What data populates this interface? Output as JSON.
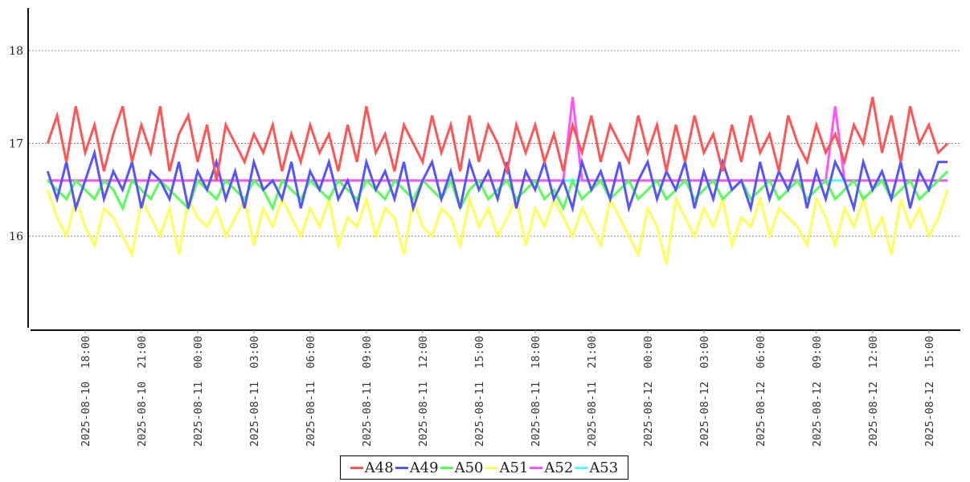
{
  "chart_data": {
    "type": "line",
    "title": "",
    "xlabel": "",
    "ylabel": "",
    "ylim": [
      15.0,
      18.45
    ],
    "yticks": [
      16,
      17,
      18
    ],
    "grid": "horizontal dotted",
    "legend_position": "bottom-center",
    "x_start": "2025-08-10 16:00",
    "x_interval_minutes": 30,
    "x_range_hours": [
      -0.75,
      49.0
    ],
    "xtick_labels": [
      "2025-08-10  18:00",
      "2025-08-10  21:00",
      "2025-08-11  00:00",
      "2025-08-11  03:00",
      "2025-08-11  06:00",
      "2025-08-11  09:00",
      "2025-08-11  12:00",
      "2025-08-11  15:00",
      "2025-08-11  18:00",
      "2025-08-11  21:00",
      "2025-08-12  00:00",
      "2025-08-12  03:00",
      "2025-08-12  06:00",
      "2025-08-12  09:00",
      "2025-08-12  12:00",
      "2025-08-12  15:00"
    ],
    "xtick_hours": [
      2,
      5,
      8,
      11,
      14,
      17,
      20,
      23,
      26,
      29,
      32,
      35,
      38,
      41,
      44,
      47
    ],
    "series": [
      {
        "name": "A48",
        "color": "#ff5555",
        "values": [
          17.0,
          17.3,
          16.8,
          17.4,
          16.9,
          17.2,
          16.7,
          17.1,
          17.4,
          16.8,
          17.2,
          16.9,
          17.4,
          16.7,
          17.1,
          17.3,
          16.8,
          17.2,
          16.6,
          17.2,
          17.0,
          16.8,
          17.1,
          16.9,
          17.2,
          16.7,
          17.1,
          16.8,
          17.2,
          16.9,
          17.1,
          16.7,
          17.2,
          16.8,
          17.4,
          16.9,
          17.1,
          16.7,
          17.2,
          17.0,
          16.8,
          17.3,
          16.9,
          17.2,
          16.7,
          17.3,
          16.8,
          17.2,
          17.0,
          16.7,
          17.2,
          16.9,
          17.2,
          16.8,
          17.1,
          16.7,
          17.2,
          16.9,
          17.3,
          16.8,
          17.2,
          17.0,
          16.8,
          17.3,
          16.9,
          17.2,
          16.7,
          17.2,
          16.8,
          17.3,
          16.9,
          17.1,
          16.7,
          17.2,
          16.8,
          17.3,
          16.9,
          17.1,
          16.7,
          17.3,
          17.0,
          16.8,
          17.2,
          16.9,
          17.1,
          16.8,
          17.2,
          17.0,
          17.5,
          16.9,
          17.3,
          16.8,
          17.4,
          17.0,
          17.2,
          16.9,
          17.0
        ]
      },
      {
        "name": "A49",
        "color": "#5555ff",
        "values": [
          16.7,
          16.4,
          16.8,
          16.3,
          16.6,
          16.9,
          16.4,
          16.7,
          16.5,
          16.8,
          16.3,
          16.7,
          16.6,
          16.4,
          16.8,
          16.3,
          16.7,
          16.5,
          16.8,
          16.4,
          16.7,
          16.3,
          16.8,
          16.5,
          16.6,
          16.4,
          16.8,
          16.3,
          16.7,
          16.5,
          16.8,
          16.4,
          16.6,
          16.3,
          16.8,
          16.5,
          16.7,
          16.4,
          16.8,
          16.3,
          16.6,
          16.8,
          16.4,
          16.7,
          16.3,
          16.8,
          16.5,
          16.7,
          16.4,
          16.8,
          16.3,
          16.7,
          16.5,
          16.8,
          16.4,
          16.6,
          16.3,
          16.8,
          16.5,
          16.7,
          16.4,
          16.8,
          16.3,
          16.6,
          16.8,
          16.4,
          16.7,
          16.5,
          16.8,
          16.3,
          16.7,
          16.4,
          16.8,
          16.5,
          16.6,
          16.3,
          16.8,
          16.4,
          16.7,
          16.5,
          16.8,
          16.3,
          16.7,
          16.4,
          16.8,
          16.6,
          16.3,
          16.8,
          16.5,
          16.7,
          16.4,
          16.8,
          16.3,
          16.7,
          16.5,
          16.8,
          16.8
        ]
      },
      {
        "name": "A50",
        "color": "#55ff55",
        "values": [
          16.6,
          16.5,
          16.4,
          16.6,
          16.5,
          16.4,
          16.6,
          16.5,
          16.3,
          16.6,
          16.5,
          16.4,
          16.6,
          16.5,
          16.4,
          16.3,
          16.6,
          16.5,
          16.4,
          16.6,
          16.5,
          16.4,
          16.6,
          16.5,
          16.3,
          16.6,
          16.5,
          16.4,
          16.6,
          16.5,
          16.4,
          16.6,
          16.5,
          16.4,
          16.6,
          16.5,
          16.4,
          16.6,
          16.5,
          16.4,
          16.6,
          16.5,
          16.4,
          16.6,
          16.3,
          16.5,
          16.6,
          16.4,
          16.5,
          16.6,
          16.4,
          16.5,
          16.6,
          16.4,
          16.5,
          16.3,
          16.6,
          16.4,
          16.5,
          16.6,
          16.4,
          16.5,
          16.6,
          16.4,
          16.5,
          16.6,
          16.4,
          16.5,
          16.6,
          16.4,
          16.5,
          16.6,
          16.4,
          16.5,
          16.6,
          16.4,
          16.5,
          16.6,
          16.4,
          16.5,
          16.6,
          16.4,
          16.5,
          16.6,
          16.4,
          16.5,
          16.6,
          16.4,
          16.5,
          16.6,
          16.4,
          16.5,
          16.6,
          16.4,
          16.5,
          16.6,
          16.7
        ]
      },
      {
        "name": "A51",
        "color": "#ffff55",
        "values": [
          16.5,
          16.2,
          16.0,
          16.4,
          16.1,
          15.9,
          16.3,
          16.2,
          16.0,
          15.8,
          16.4,
          16.2,
          16.0,
          16.3,
          15.8,
          16.4,
          16.2,
          16.1,
          16.3,
          16.0,
          16.2,
          16.4,
          15.9,
          16.3,
          16.1,
          16.4,
          16.2,
          16.0,
          16.3,
          16.1,
          16.4,
          15.9,
          16.2,
          16.1,
          16.4,
          16.0,
          16.3,
          16.2,
          15.8,
          16.4,
          16.1,
          16.0,
          16.3,
          16.2,
          15.9,
          16.4,
          16.1,
          16.3,
          16.0,
          16.2,
          16.4,
          15.9,
          16.3,
          16.1,
          16.4,
          16.2,
          16.0,
          16.3,
          16.1,
          15.9,
          16.4,
          16.2,
          16.0,
          15.8,
          16.3,
          16.1,
          15.7,
          16.4,
          16.2,
          16.0,
          16.3,
          16.1,
          16.4,
          15.9,
          16.2,
          16.1,
          16.4,
          16.0,
          16.3,
          16.2,
          16.1,
          15.9,
          16.4,
          16.2,
          15.9,
          16.3,
          16.1,
          16.4,
          16.0,
          16.2,
          15.8,
          16.4,
          16.1,
          16.3,
          16.0,
          16.2,
          16.5
        ]
      },
      {
        "name": "A52",
        "color": "#ff55ff",
        "values": [
          16.6,
          16.6,
          16.6,
          16.6,
          16.6,
          16.6,
          16.6,
          16.6,
          16.6,
          16.6,
          16.6,
          16.6,
          16.6,
          16.6,
          16.6,
          16.6,
          16.6,
          16.6,
          16.6,
          16.6,
          16.6,
          16.6,
          16.6,
          16.6,
          16.6,
          16.6,
          16.6,
          16.6,
          16.6,
          16.6,
          16.6,
          16.6,
          16.6,
          16.6,
          16.6,
          16.6,
          16.6,
          16.6,
          16.6,
          16.6,
          16.6,
          16.6,
          16.6,
          16.6,
          16.6,
          16.6,
          16.6,
          16.6,
          16.6,
          16.6,
          16.6,
          16.6,
          16.6,
          16.6,
          16.6,
          16.6,
          17.5,
          16.6,
          16.6,
          16.6,
          16.6,
          16.6,
          16.6,
          16.6,
          16.6,
          16.6,
          16.6,
          16.6,
          16.6,
          16.6,
          16.6,
          16.6,
          16.6,
          16.6,
          16.6,
          16.6,
          16.6,
          16.6,
          16.6,
          16.6,
          16.6,
          16.6,
          16.6,
          16.6,
          17.4,
          16.6,
          16.6,
          16.6,
          16.6,
          16.6,
          16.6,
          16.6,
          16.6,
          16.6,
          16.6,
          16.6,
          16.6
        ]
      },
      {
        "name": "A53",
        "color": "#55ffff",
        "values": [
          16.6,
          16.6,
          16.6,
          16.6,
          16.6,
          16.6,
          16.6,
          16.6,
          16.6,
          16.6,
          16.6,
          16.6,
          16.6,
          16.6,
          16.6,
          16.6,
          16.6,
          16.6,
          16.6,
          16.6,
          16.6,
          16.6,
          16.6,
          16.6,
          16.6,
          16.6,
          16.6,
          16.6,
          16.6,
          16.6,
          16.6,
          16.6,
          16.6,
          16.6,
          16.6,
          16.6,
          16.6,
          16.6,
          16.6,
          16.6,
          16.6,
          16.6,
          16.6,
          16.6,
          16.6,
          16.6,
          16.6,
          16.6,
          16.6,
          16.6,
          16.6,
          16.6,
          16.6,
          16.6,
          16.6,
          16.6,
          16.6,
          16.6,
          16.6,
          16.6,
          16.6,
          16.6,
          16.6,
          16.6,
          16.6,
          16.6,
          16.6,
          16.6,
          16.6,
          16.6,
          16.6,
          16.6,
          16.6,
          16.6,
          16.6,
          16.6,
          16.6,
          16.6,
          16.6,
          16.6,
          16.6,
          16.6,
          16.6,
          16.6,
          16.6,
          16.6,
          16.6,
          16.6,
          16.6,
          16.6,
          16.6,
          16.6,
          16.6,
          16.6,
          16.6,
          16.6,
          16.6
        ]
      }
    ]
  }
}
